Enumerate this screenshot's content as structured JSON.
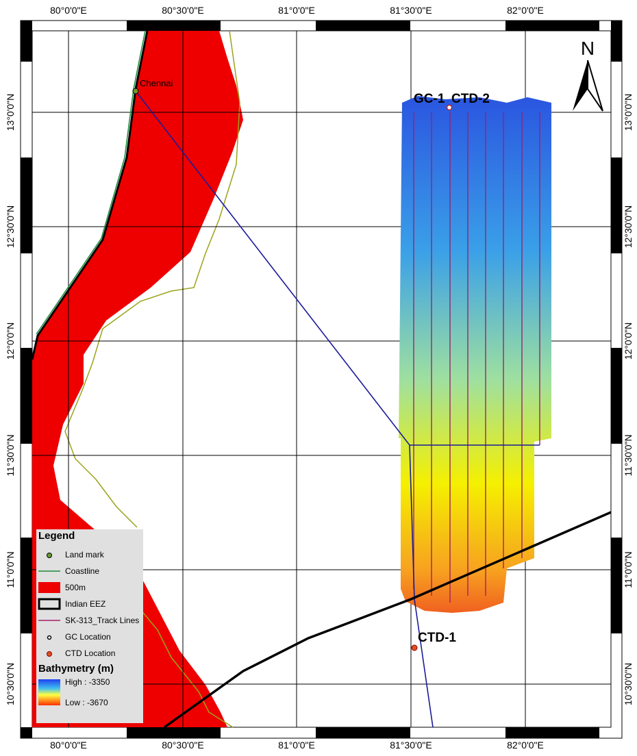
{
  "map": {
    "longitude_labels": [
      "80°0'0\"E",
      "80°30'0\"E",
      "81°0'0\"E",
      "81°30'0\"E",
      "82°0'0\"E"
    ],
    "latitude_labels": [
      "13°0'0\"N",
      "12°30'0\"N",
      "12°0'0\"N",
      "11°30'0\"N",
      "11°0'0\"N",
      "10°30'0\"N"
    ],
    "place_labels": {
      "chennai": "Chennai",
      "gc1": "GC-1",
      "ctd2": "CTD-2",
      "ctd1": "CTD-1"
    },
    "north_arrow": "N",
    "legend": {
      "title": "Legend",
      "items": [
        "Land mark",
        "Coastline",
        "500m",
        "Indian EEZ",
        "SK-313_Track Lines",
        "GC Location",
        "CTD Location"
      ],
      "bathymetry_title": "Bathymetry (m)",
      "high": "High : -3350",
      "low": "Low : -3670"
    }
  }
}
